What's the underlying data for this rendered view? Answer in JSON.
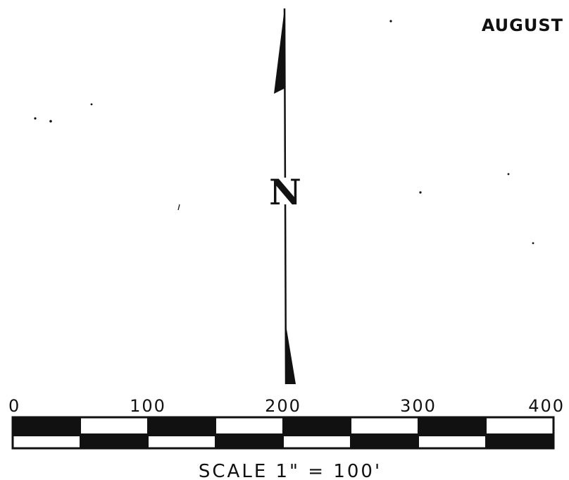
{
  "map": {
    "month": "AUGUST",
    "north_letter": "N",
    "scale": {
      "label": "SCALE  1\" = 100'",
      "ticks": [
        {
          "value": 0,
          "label": "0"
        },
        {
          "value": 100,
          "label": "100"
        },
        {
          "value": 200,
          "label": "200"
        },
        {
          "value": 300,
          "label": "300"
        },
        {
          "value": 400,
          "label": "400"
        }
      ],
      "min": 0,
      "max": 400,
      "segment_step": 50,
      "unit": "ft"
    }
  },
  "colors": {
    "ink": "#111111",
    "paper": "#ffffff"
  },
  "icons": {
    "north_arrow": "north-arrow-icon"
  }
}
